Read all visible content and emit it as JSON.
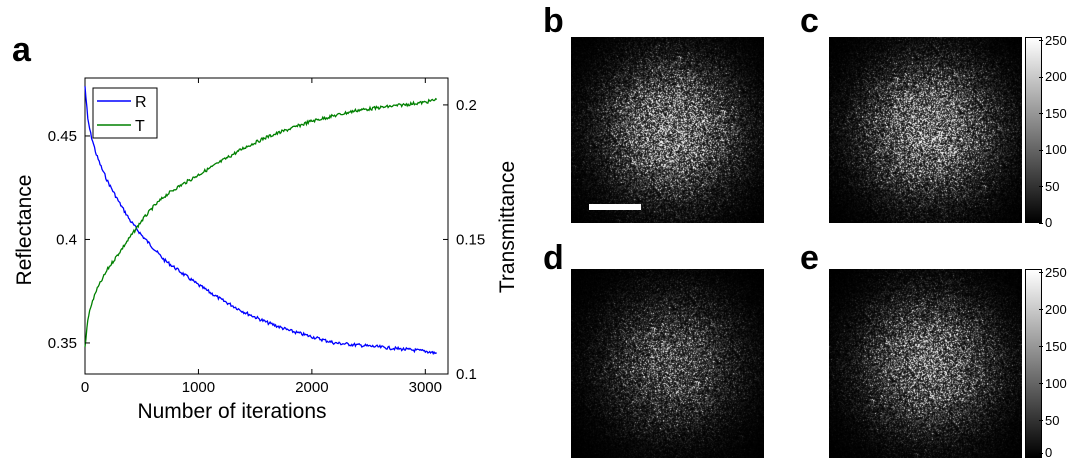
{
  "panels": {
    "a": "a",
    "b": "b",
    "c": "c",
    "d": "d",
    "e": "e"
  },
  "chart_data": {
    "type": "line",
    "title": "",
    "xlabel": "Number of iterations",
    "ylabel_left": "Reflectance",
    "ylabel_right": "Transmittance",
    "xlim": [
      0,
      3200
    ],
    "ylim_left": [
      0.335,
      0.478
    ],
    "ylim_right": [
      0.1,
      0.21
    ],
    "x_ticks": [
      "0",
      "1000",
      "2000",
      "3000"
    ],
    "y_ticks_left": [
      "0.35",
      "0.4",
      "0.45"
    ],
    "y_ticks_right": [
      "0.1",
      "0.15",
      "0.2"
    ],
    "legend_position": "top-left",
    "grid": false,
    "series": [
      {
        "name": "R",
        "axis": "left",
        "color": "#0000ff",
        "x": [
          0,
          25,
          50,
          100,
          150,
          200,
          300,
          400,
          500,
          600,
          700,
          800,
          1000,
          1200,
          1400,
          1600,
          1800,
          2000,
          2200,
          2400,
          2600,
          2800,
          3000,
          3100
        ],
        "y": [
          0.474,
          0.458,
          0.451,
          0.441,
          0.434,
          0.428,
          0.418,
          0.409,
          0.402,
          0.396,
          0.39,
          0.386,
          0.378,
          0.371,
          0.365,
          0.36,
          0.356,
          0.353,
          0.35,
          0.349,
          0.348,
          0.347,
          0.346,
          0.345
        ]
      },
      {
        "name": "T",
        "axis": "right",
        "color": "#008000",
        "x": [
          0,
          25,
          50,
          100,
          150,
          200,
          300,
          400,
          500,
          600,
          700,
          800,
          1000,
          1200,
          1400,
          1600,
          1800,
          2000,
          2200,
          2400,
          2600,
          2800,
          3000,
          3100
        ],
        "y": [
          0.11,
          0.12,
          0.125,
          0.131,
          0.135,
          0.139,
          0.145,
          0.151,
          0.157,
          0.162,
          0.166,
          0.169,
          0.174,
          0.179,
          0.184,
          0.188,
          0.191,
          0.194,
          0.196,
          0.198,
          0.199,
          0.2,
          0.201,
          0.202
        ]
      }
    ]
  },
  "colorbars": {
    "c": {
      "ticks": [
        "250",
        "200",
        "150",
        "100",
        "50",
        "0"
      ],
      "values": [
        250,
        200,
        150,
        100,
        50,
        0
      ],
      "range": [
        0,
        255
      ]
    },
    "e": {
      "ticks": [
        "250",
        "200",
        "150",
        "100",
        "50",
        "0"
      ],
      "values": [
        250,
        200,
        150,
        100,
        50,
        0
      ],
      "range": [
        0,
        255
      ]
    }
  },
  "speckle_images": {
    "b": {
      "brightness": 1.0,
      "scale_bar": true
    },
    "c": {
      "brightness": 1.0,
      "scale_bar": false
    },
    "d": {
      "brightness": 0.6,
      "scale_bar": false
    },
    "e": {
      "brightness": 0.85,
      "scale_bar": false
    }
  }
}
